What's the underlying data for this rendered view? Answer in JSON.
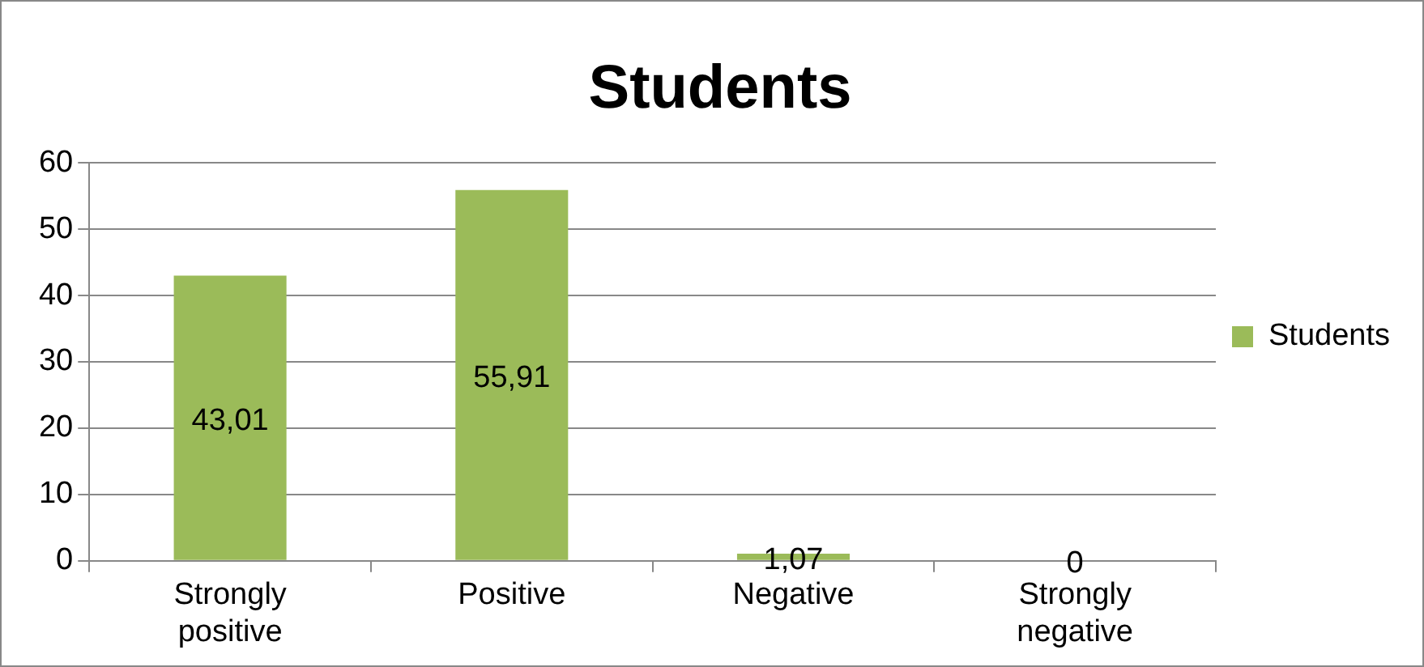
{
  "chart_data": {
    "type": "bar",
    "title": "Students",
    "categories": [
      "Strongly positive",
      "Positive",
      "Negative",
      "Strongly negative"
    ],
    "series": [
      {
        "name": "Students",
        "color": "#9bbb59",
        "values": [
          43.01,
          55.91,
          1.07,
          0
        ],
        "value_labels": [
          "43,01",
          "55,91",
          "1,07",
          "0"
        ]
      }
    ],
    "ylim": [
      0,
      60
    ],
    "yticks": [
      0,
      10,
      20,
      30,
      40,
      50,
      60
    ],
    "grid": "y",
    "legend": "right"
  }
}
